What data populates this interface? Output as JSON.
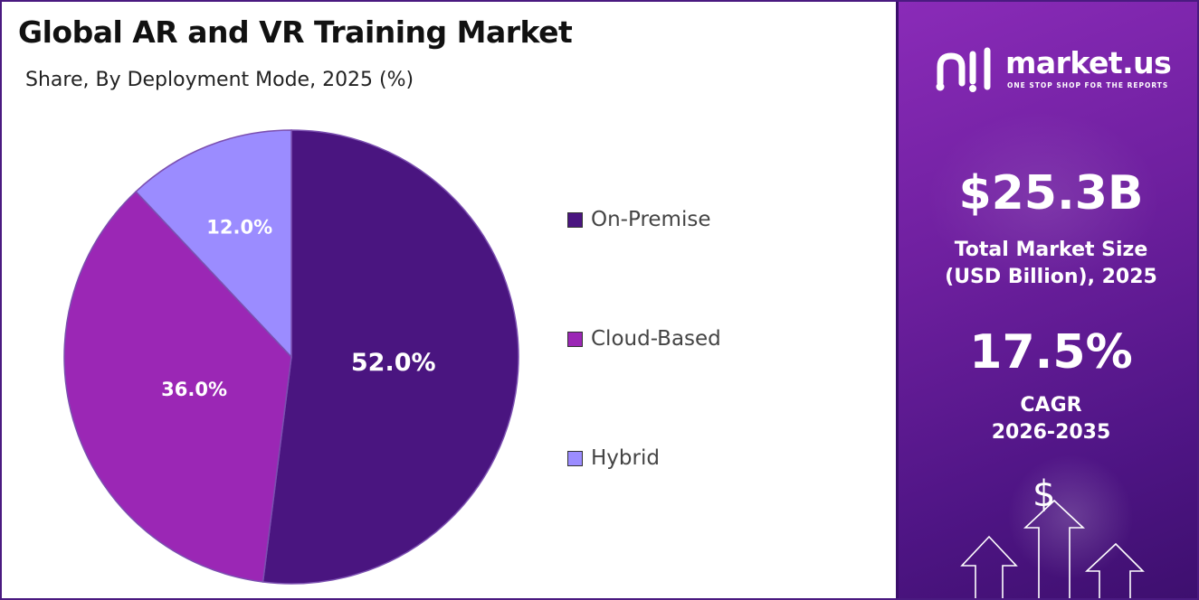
{
  "title": "Global AR and VR Training Market",
  "subtitle": "Share, By Deployment Mode, 2025 (%)",
  "chart_data": {
    "type": "pie",
    "categories": [
      "On-Premise",
      "Cloud-Based",
      "Hybrid"
    ],
    "values": [
      52.0,
      36.0,
      12.0
    ],
    "data_labels": [
      "52.0%",
      "36.0%",
      "12.0%"
    ],
    "colors": [
      "#4a1580",
      "#9b27b5",
      "#9b8cff"
    ],
    "legend_position": "right",
    "start_angle": "12 o'clock, clockwise"
  },
  "side_panel": {
    "brand_name": "market.us",
    "brand_tagline": "ONE STOP SHOP FOR THE REPORTS",
    "market_size_value": "$25.3B",
    "market_size_label_line1": "Total Market Size",
    "market_size_label_line2": "(USD Billion), 2025",
    "cagr_value": "17.5%",
    "cagr_label_line1": "CAGR",
    "cagr_label_line2": "2026-2035",
    "currency_symbol": "$"
  }
}
